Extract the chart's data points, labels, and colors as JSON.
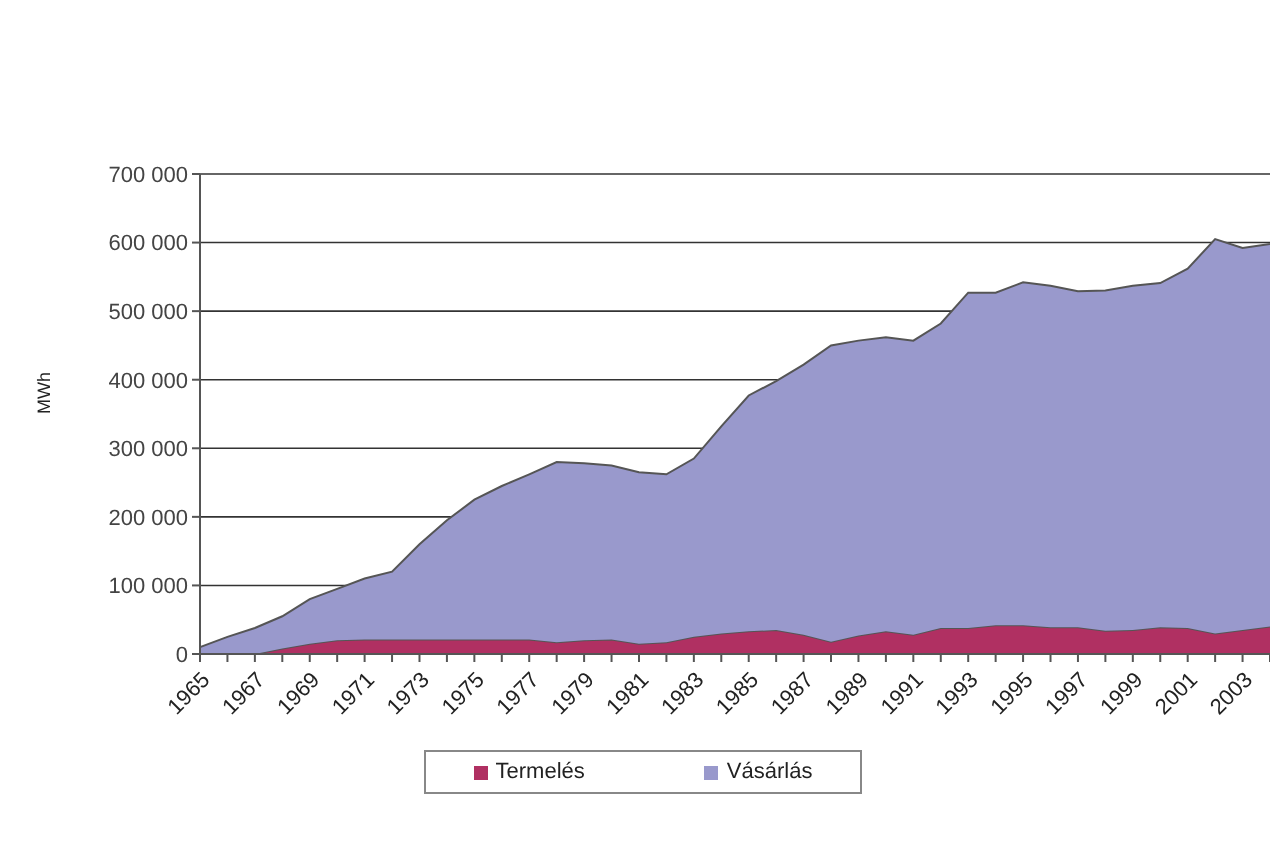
{
  "chart_data": {
    "type": "area",
    "stacked": true,
    "ylabel": "MWh",
    "categories": [
      "1965",
      null,
      "1967",
      null,
      "1969",
      null,
      "1971",
      null,
      "1973",
      null,
      "1975",
      null,
      "1977",
      null,
      "1979",
      null,
      "1981",
      null,
      "1983",
      null,
      "1985",
      null,
      "1987",
      null,
      "1989",
      null,
      "1991",
      null,
      "1993",
      null,
      "1995",
      null,
      "1997",
      null,
      "1999",
      null,
      "2001",
      null,
      "2003",
      null
    ],
    "series": [
      {
        "name": "Termelés",
        "color": "#b03062",
        "values": [
          0,
          0,
          0,
          8000,
          15000,
          20000,
          21000,
          21000,
          21000,
          21000,
          21000,
          21000,
          21000,
          17000,
          20000,
          21000,
          15000,
          17000,
          25000,
          30000,
          33000,
          35000,
          28000,
          18000,
          27000,
          33000,
          28000,
          38000,
          38000,
          42000,
          42000,
          39000,
          39000,
          34000,
          35000,
          39000,
          38000,
          30000,
          35000,
          40000
        ]
      },
      {
        "name": "Vásárlás",
        "color": "#9999cc",
        "values": [
          10000,
          25000,
          38000,
          47000,
          65000,
          75000,
          89000,
          99000,
          139000,
          174000,
          204000,
          224000,
          241000,
          263000,
          258000,
          254000,
          250000,
          245000,
          260000,
          302000,
          344000,
          363000,
          394000,
          432000,
          430000,
          429000,
          429000,
          444000,
          489000,
          485000,
          500000,
          498000,
          490000,
          496000,
          502000,
          502000,
          524000,
          575000,
          557000,
          558000
        ]
      }
    ],
    "ylim": [
      0,
      700000
    ],
    "yticks": [
      0,
      {
        "value": 100000,
        "label": "100 000"
      },
      {
        "value": 200000,
        "label": "200 000"
      },
      {
        "value": 300000,
        "label": "300 000"
      },
      {
        "value": 400000,
        "label": "400 000"
      },
      {
        "value": 500000,
        "label": "500 000"
      },
      {
        "value": 600000,
        "label": "600 000"
      },
      {
        "value": 700000,
        "label": "700 000"
      }
    ],
    "grid": "y",
    "legend": "bottom"
  }
}
